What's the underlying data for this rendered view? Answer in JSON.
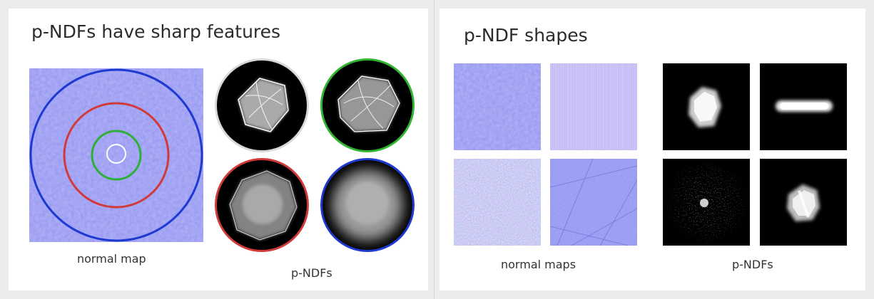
{
  "left_slide": {
    "title": "p-NDFs have sharp features",
    "normal_map_caption": "normal map",
    "pndfs_caption": "p-NDFs",
    "ring_colors": [
      "#1f3ad0",
      "#d23a3a",
      "#2fae3a",
      "#ffffff"
    ],
    "circle_border_colors": [
      "#d8d8d8",
      "#2fb52f",
      "#d23a3a",
      "#1f3ad0"
    ]
  },
  "right_slide": {
    "title": "p-NDF shapes",
    "normal_maps_caption": "normal maps",
    "pndfs_caption": "p-NDFs"
  },
  "colors": {
    "normal_map_base": "#8e8ff0",
    "background": "#ececec",
    "slide": "#ffffff"
  }
}
